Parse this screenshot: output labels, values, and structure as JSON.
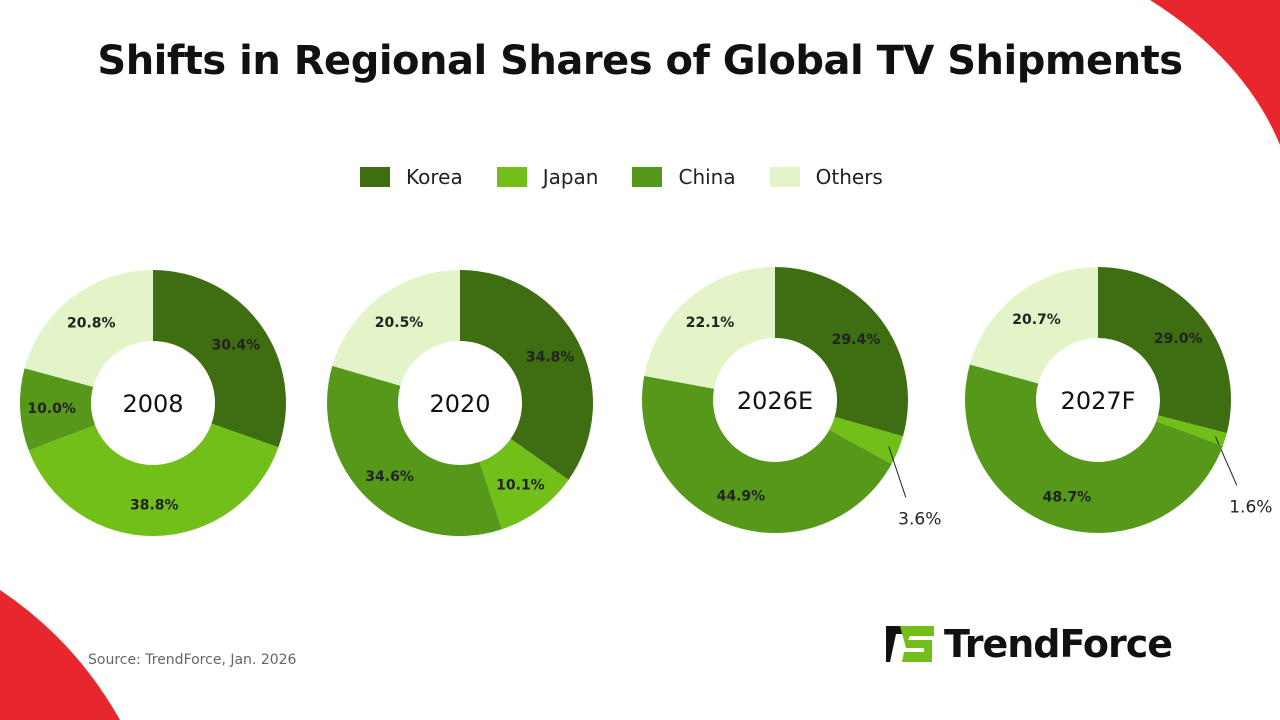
{
  "title": "Shifts in Regional Shares of Global TV Shipments",
  "source": "Source: TrendForce, Jan. 2026",
  "logo": "TrendForce",
  "chart_data": {
    "type": "donut",
    "legend_position": "top",
    "legend": [
      "Korea",
      "Japan",
      "China",
      "Others"
    ],
    "colors": {
      "Korea": "#3f6e12",
      "Japan": "#72bf1a",
      "China": "#55981a",
      "Others": "#e3f5c8"
    },
    "charts": [
      {
        "label": "2008",
        "values": {
          "Korea": 30.4,
          "Japan": 38.8,
          "China": 10.0,
          "Others": 20.8
        },
        "data_labels": [
          "30.4%",
          "38.8%",
          "10.0%",
          "20.8%"
        ]
      },
      {
        "label": "2020",
        "values": {
          "Korea": 34.8,
          "Japan": 10.1,
          "China": 34.6,
          "Others": 20.5
        },
        "data_labels": [
          "34.8%",
          "10.1%",
          "34.6%",
          "20.5%"
        ]
      },
      {
        "label": "2026E",
        "values": {
          "Korea": 29.4,
          "Japan": 3.6,
          "China": 44.9,
          "Others": 22.1
        },
        "data_labels": [
          "29.4%",
          "3.6%",
          "44.9%",
          "22.1%"
        ]
      },
      {
        "label": "2027F",
        "values": {
          "Korea": 29.0,
          "Japan": 1.6,
          "China": 48.7,
          "Others": 20.7
        },
        "data_labels": [
          "29.0%",
          "1.6%",
          "48.7%",
          "20.7%"
        ]
      }
    ]
  }
}
